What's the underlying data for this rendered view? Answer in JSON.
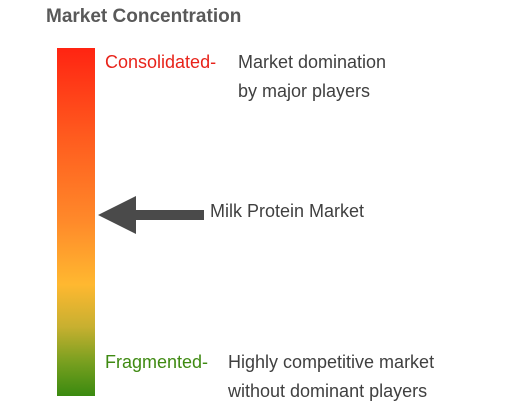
{
  "title": "Market Concentration",
  "scale": {
    "top": {
      "label": "Consolidated-",
      "color": "#e8231a",
      "description_lines": [
        "Market domination",
        "by major players"
      ]
    },
    "bottom": {
      "label": "Fragmented-",
      "color": "#3f8a12",
      "description_lines": [
        "Highly competitive market",
        "without dominant players"
      ]
    },
    "gradient_colors": [
      "#ff2412",
      "#ff8a2a",
      "#ffb830",
      "#3a8a10"
    ]
  },
  "marker": {
    "label": "Milk Protein Market",
    "arrow_color": "#4a4a4a",
    "position_fraction_from_top": 0.47
  }
}
